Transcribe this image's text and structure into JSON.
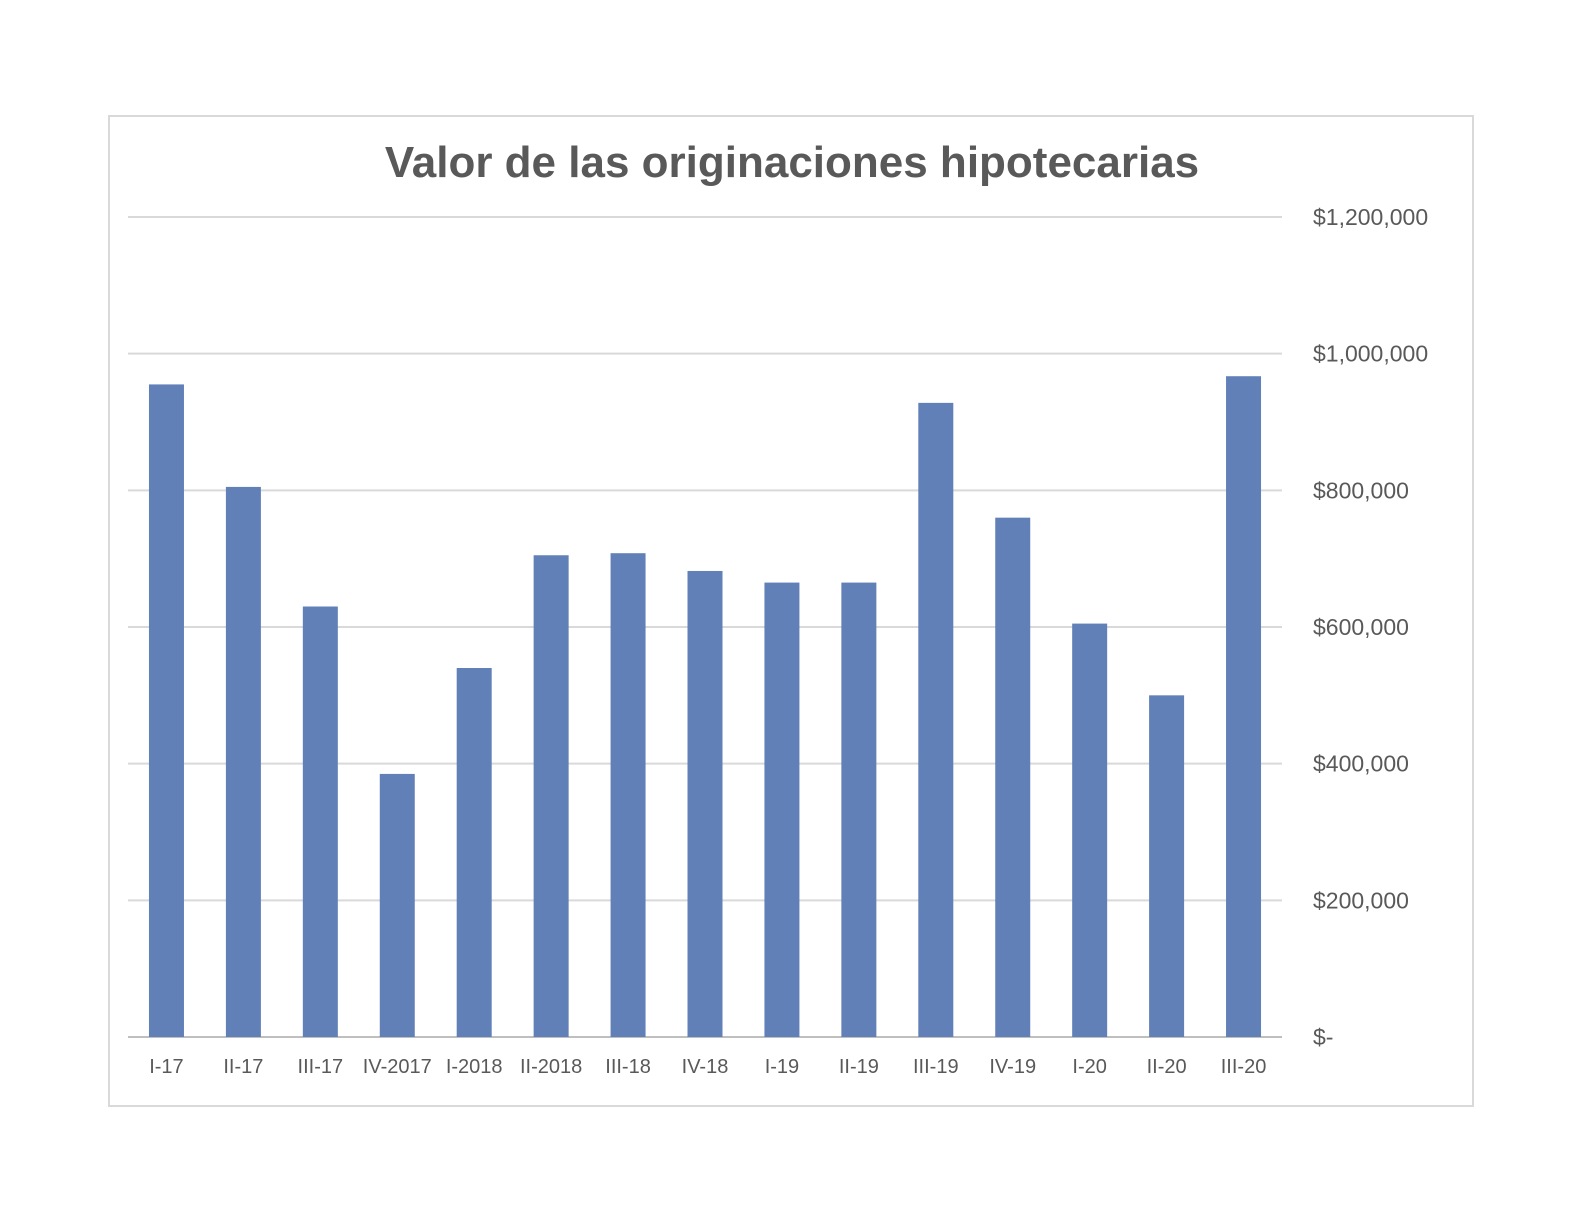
{
  "chart_data": {
    "type": "bar",
    "title": "Valor de las originaciones hipotecarias",
    "xlabel": "",
    "ylabel": "",
    "categories": [
      "I-17",
      "II-17",
      "III-17",
      "IV-2017",
      "I-2018",
      "II-2018",
      "III-18",
      "IV-18",
      "I-19",
      "II-19",
      "III-19",
      "IV-19",
      "I-20",
      "II-20",
      "III-20"
    ],
    "values": [
      955000,
      805000,
      630000,
      385000,
      540000,
      705000,
      708000,
      682000,
      665000,
      665000,
      928000,
      760000,
      605000,
      500000,
      967000
    ],
    "ylim": [
      0,
      1200000
    ],
    "yticks": [
      0,
      200000,
      400000,
      600000,
      800000,
      1000000,
      1200000
    ],
    "ytick_labels": [
      "$-",
      "$200,000",
      "$400,000",
      "$600,000",
      "$800,000",
      "$1,000,000",
      "$1,200,000"
    ],
    "y_axis_side": "right",
    "grid": true,
    "legend": "none",
    "bar_color": "#6180b8",
    "grid_color": "#d9d9d9"
  }
}
